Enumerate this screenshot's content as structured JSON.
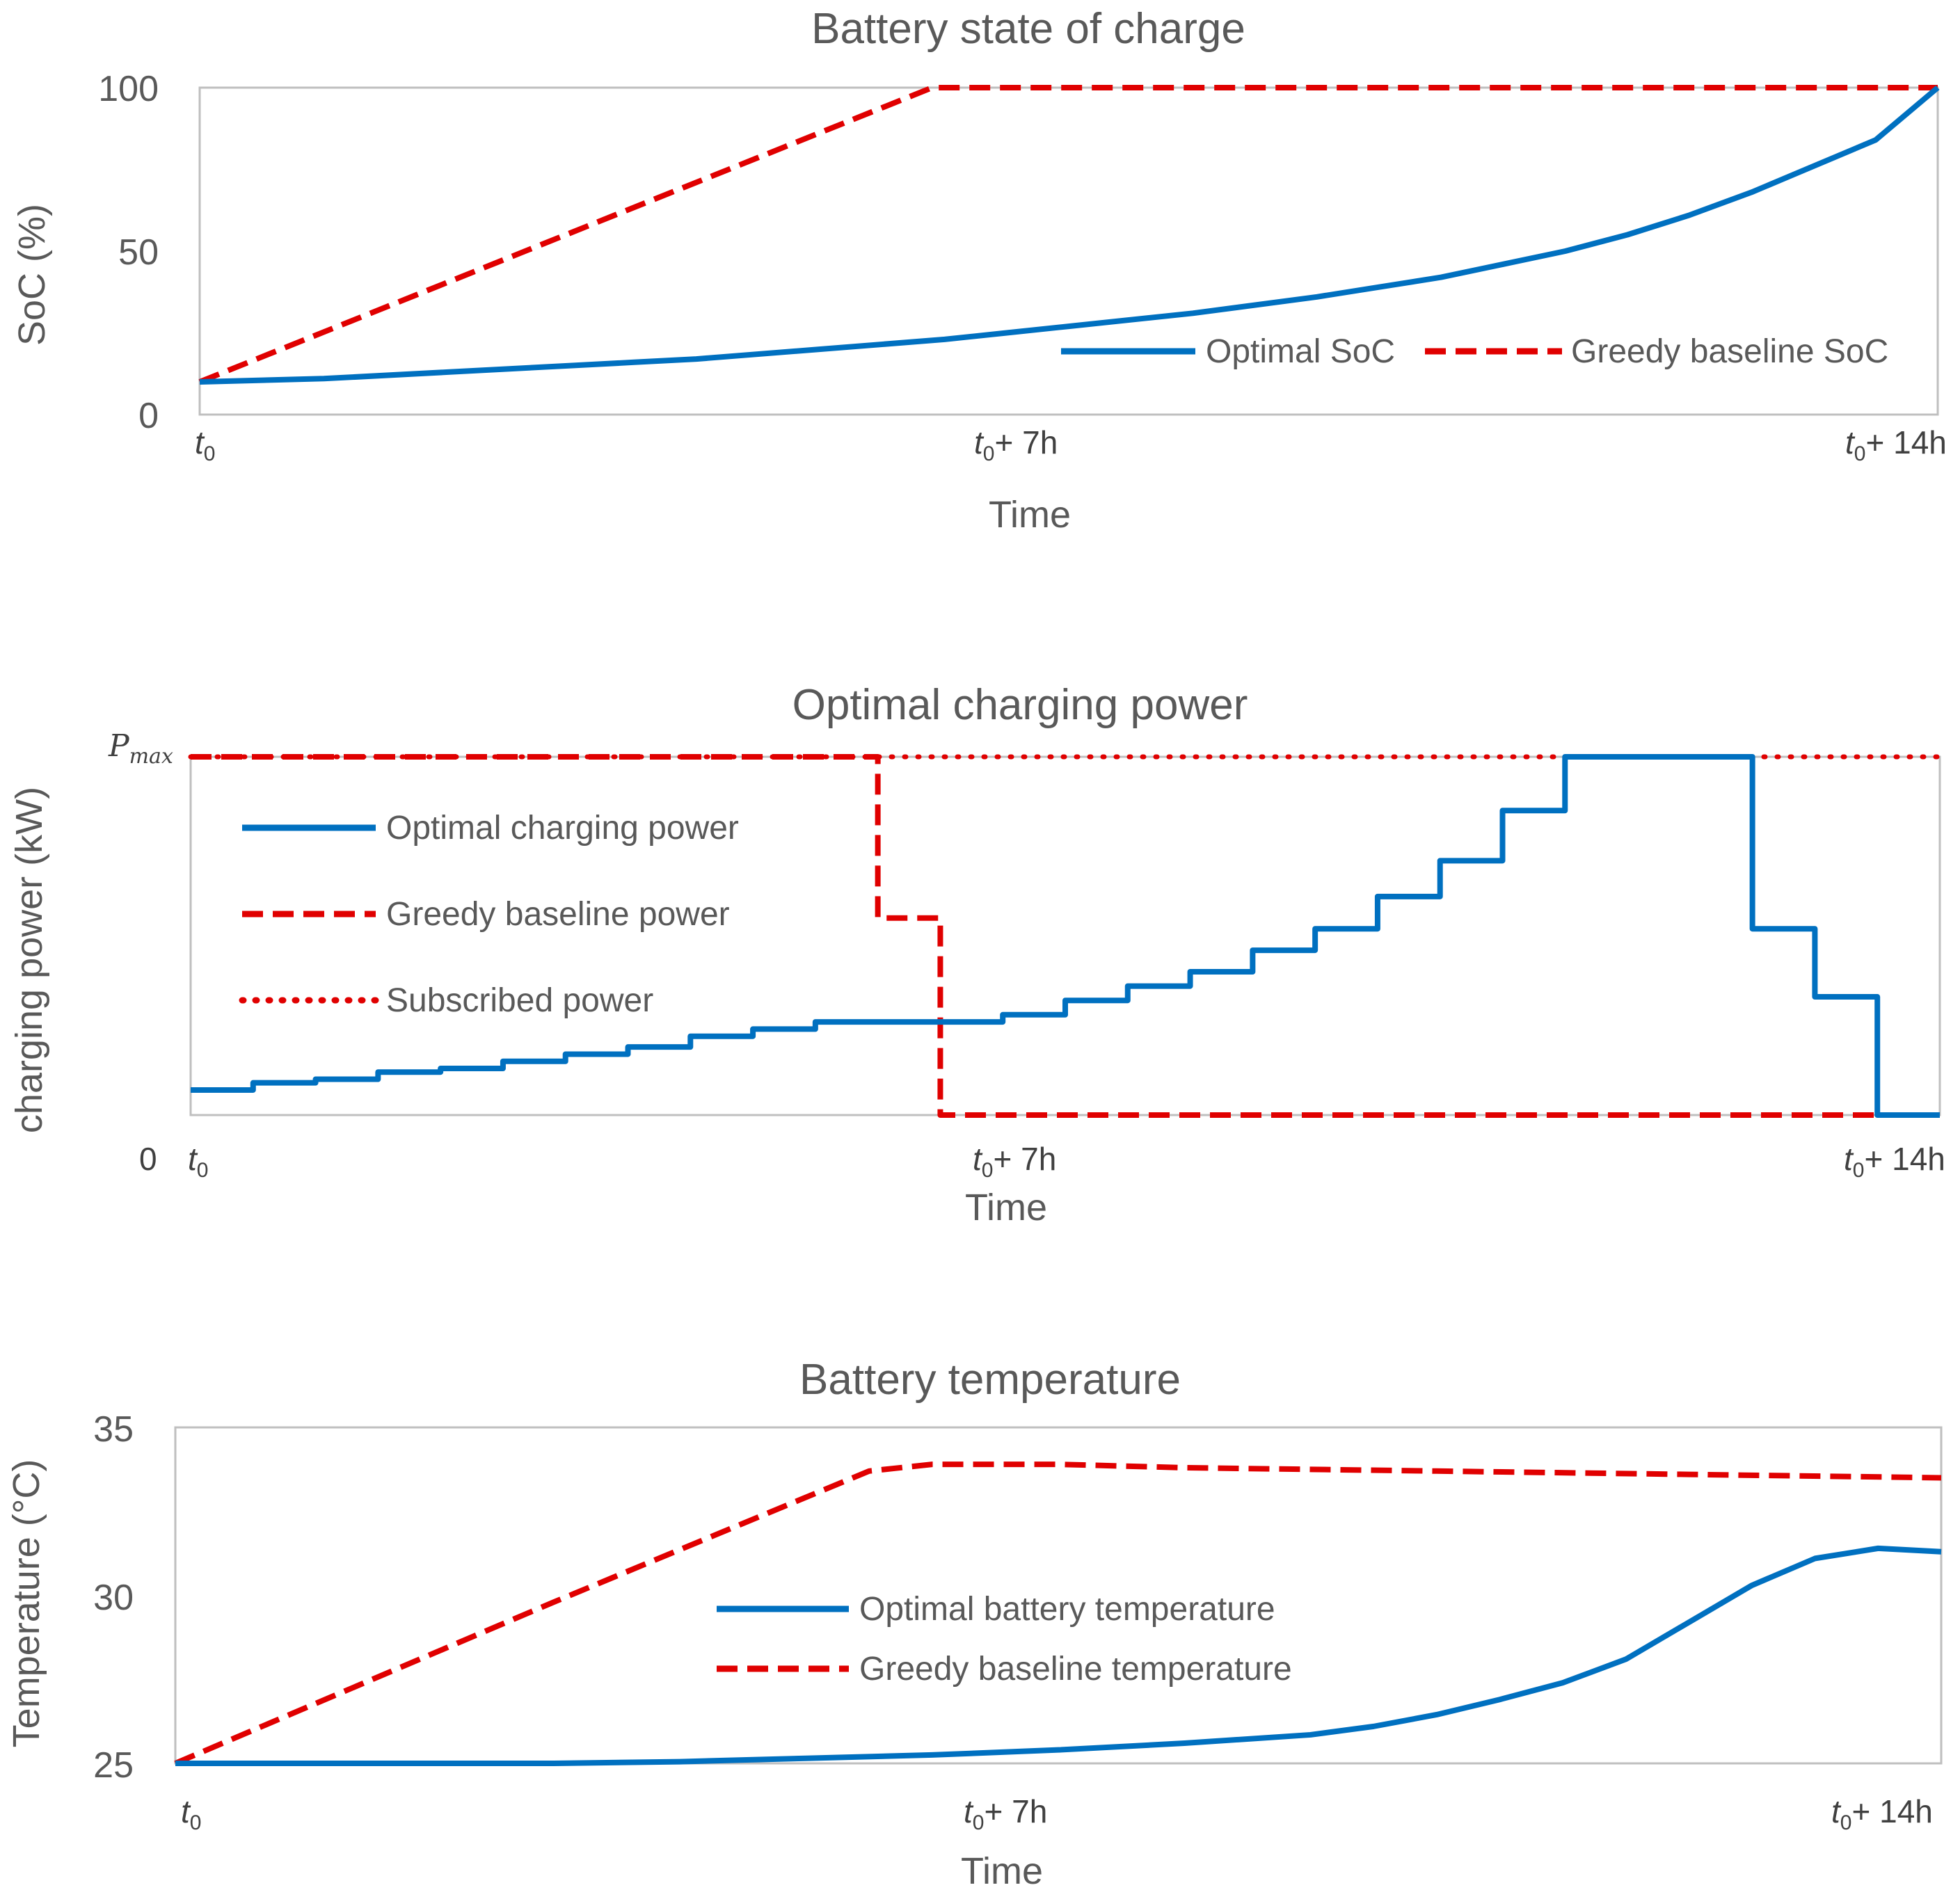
{
  "chart_data": [
    {
      "type": "line",
      "title": "Battery state of charge",
      "xlabel": "Time",
      "ylabel": "SoC  (%)",
      "xlim": [
        0,
        14
      ],
      "ylim": [
        0,
        100
      ],
      "yticks": [
        0,
        50,
        100
      ],
      "xticks": [
        {
          "value": 0,
          "base": "t",
          "sub": "0",
          "suffix": ""
        },
        {
          "value": 7,
          "base": "t",
          "sub": "0",
          "suffix": "+ 7h"
        },
        {
          "value": 14,
          "base": "t",
          "sub": "0",
          "suffix": "+ 14h"
        }
      ],
      "legend_position": "bottom-right",
      "series": [
        {
          "name": "Optimal SoC",
          "style": "solid",
          "color": "#0070c0",
          "x": [
            0,
            1,
            2,
            3,
            3.5,
            4,
            5,
            6,
            6.5,
            7,
            8,
            9,
            9.5,
            10,
            10.5,
            11,
            11.5,
            12,
            12.5,
            13,
            13.5,
            14
          ],
          "y": [
            10,
            11,
            13,
            15,
            16,
            17,
            20,
            23,
            25,
            27,
            31,
            36,
            39,
            42,
            46,
            50,
            55,
            61,
            68,
            76,
            84,
            100
          ]
        },
        {
          "name": "Greedy baseline SoC",
          "style": "dashed",
          "color": "#e00000",
          "x": [
            0,
            5.9,
            14
          ],
          "y": [
            10,
            100,
            100
          ]
        }
      ]
    },
    {
      "type": "line",
      "title": "Optimal charging power",
      "xlabel": "Time",
      "ylabel": "charging power (kW)",
      "xlim": [
        0,
        14
      ],
      "ylim": [
        0,
        1
      ],
      "ytick_zero": "0",
      "pmax_base": "P",
      "pmax_sub": "max",
      "xticks": [
        {
          "value": 0,
          "base": "t",
          "sub": "0",
          "suffix": ""
        },
        {
          "value": 7,
          "base": "t",
          "sub": "0",
          "suffix": "+ 7h"
        },
        {
          "value": 14,
          "base": "t",
          "sub": "0",
          "suffix": "+ 14h"
        }
      ],
      "legend_position": "top-left",
      "series": [
        {
          "name": "Optimal charging power",
          "style": "solid",
          "color": "#0070c0",
          "step": true,
          "x": [
            0,
            0.5,
            1,
            1.5,
            2,
            2.5,
            3,
            3.5,
            4,
            4.5,
            5,
            6.5,
            7,
            7.5,
            8,
            8.5,
            9,
            9.5,
            10,
            10.5,
            11,
            12.5,
            13,
            13.5,
            14
          ],
          "y": [
            0.07,
            0.09,
            0.1,
            0.12,
            0.13,
            0.15,
            0.17,
            0.19,
            0.22,
            0.24,
            0.26,
            0.28,
            0.32,
            0.36,
            0.4,
            0.46,
            0.52,
            0.61,
            0.71,
            0.85,
            1.0,
            0.52,
            0.33,
            0.0,
            0.0
          ]
        },
        {
          "name": "Greedy baseline power",
          "style": "dashed",
          "color": "#e00000",
          "step": true,
          "x": [
            0,
            5.5,
            6,
            14
          ],
          "y": [
            1.0,
            0.55,
            0.0,
            0.0
          ]
        },
        {
          "name": "Subscribed power",
          "style": "dotted",
          "color": "#e00000",
          "step": true,
          "x": [
            0,
            14
          ],
          "y": [
            1.0,
            1.0
          ]
        }
      ]
    },
    {
      "type": "line",
      "title": "Battery temperature",
      "xlabel": "Time",
      "ylabel": "Temperature (°C)",
      "xlim": [
        0,
        14
      ],
      "ylim": [
        25,
        35
      ],
      "yticks": [
        25,
        30,
        35
      ],
      "xticks": [
        {
          "value": 0,
          "base": "t",
          "sub": "0",
          "suffix": ""
        },
        {
          "value": 7,
          "base": "t",
          "sub": "0",
          "suffix": "+ 7h"
        },
        {
          "value": 14,
          "base": "t",
          "sub": "0",
          "suffix": "+ 14h"
        }
      ],
      "legend_position": "center",
      "series": [
        {
          "name": "Optimal battery temperature",
          "style": "solid",
          "color": "#0070c0",
          "x": [
            0,
            2,
            3,
            4,
            5,
            6,
            7,
            8,
            9,
            9.5,
            10,
            10.5,
            11,
            11.5,
            12,
            12.5,
            13,
            13.5,
            14
          ],
          "y": [
            25.0,
            25.0,
            25.0,
            25.05,
            25.15,
            25.25,
            25.4,
            25.6,
            25.85,
            26.1,
            26.45,
            26.9,
            27.4,
            28.1,
            29.2,
            30.3,
            31.1,
            31.4,
            31.3
          ]
        },
        {
          "name": "Greedy baseline temperature",
          "style": "dashed",
          "color": "#e00000",
          "x": [
            0,
            3,
            5.5,
            6,
            7,
            8,
            10,
            12,
            14
          ],
          "y": [
            25.0,
            29.8,
            33.7,
            33.9,
            33.9,
            33.8,
            33.7,
            33.6,
            33.5
          ]
        }
      ]
    }
  ]
}
